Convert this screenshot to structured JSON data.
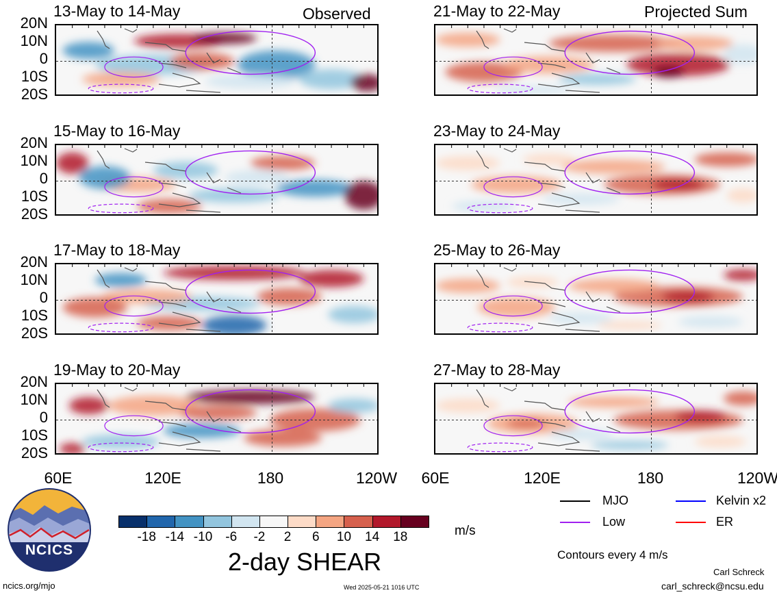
{
  "observed_label": "Observed",
  "projected_label": "Projected Sum",
  "lat_labels": [
    "20N",
    "10N",
    "0",
    "10S",
    "20S"
  ],
  "lon_labels": [
    "60E",
    "120E",
    "180",
    "120W"
  ],
  "panels_left": [
    {
      "title": "13-May to 14-May"
    },
    {
      "title": "15-May to 16-May"
    },
    {
      "title": "17-May to 18-May"
    },
    {
      "title": "19-May to 20-May"
    }
  ],
  "panels_right": [
    {
      "title": "21-May to 22-May"
    },
    {
      "title": "23-May to 24-May"
    },
    {
      "title": "25-May to 26-May"
    },
    {
      "title": "27-May to 28-May"
    }
  ],
  "colorbar": {
    "colors": [
      "#08306b",
      "#2166ac",
      "#4393c3",
      "#92c5de",
      "#d1e5f0",
      "#f7f7f7",
      "#fddbc7",
      "#f4a582",
      "#d6604d",
      "#b2182b",
      "#67001f"
    ],
    "tick_labels": [
      "-18",
      "-14",
      "-10",
      "-6",
      "-2",
      "2",
      "6",
      "10",
      "14",
      "18"
    ],
    "units": "m/s",
    "title": "2-day SHEAR"
  },
  "legend": {
    "items": [
      {
        "label": "MJO",
        "color": "#000000"
      },
      {
        "label": "Kelvin x2",
        "color": "#0000ff"
      },
      {
        "label": "Low",
        "color": "#a020f0"
      },
      {
        "label": "ER",
        "color": "#ff0000"
      }
    ],
    "contour_note": "Contours every 4 m/s"
  },
  "logo_text": "NCICS",
  "footer": {
    "url": "ncics.org/mjo",
    "timestamp": "Wed 2025-05-21 1016 UTC",
    "author": "Carl Schreck",
    "email": "carl_schreck@ncsu.edu"
  }
}
